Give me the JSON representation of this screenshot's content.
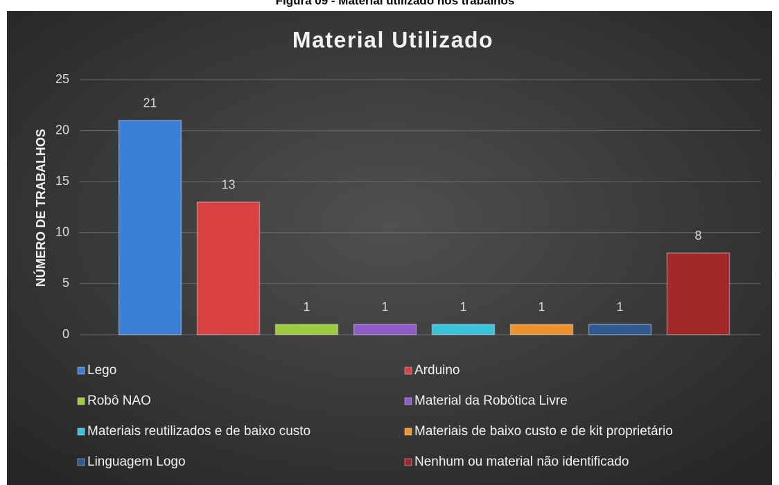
{
  "caption": "Figura 09 - Material utilizado nos trabalhos",
  "chart_data": {
    "type": "bar",
    "title": "Material Utilizado",
    "y_label": "NÚMERO DE TRABALHOS",
    "categories": [
      null
    ],
    "series": [
      {
        "name": "Lego",
        "color": "#3b80d6",
        "values": [
          21
        ]
      },
      {
        "name": "Arduino",
        "color": "#d94242",
        "values": [
          13
        ]
      },
      {
        "name": "Robô NAO",
        "color": "#9ccc3c",
        "values": [
          1
        ]
      },
      {
        "name": "Material da Robótica Livre",
        "color": "#8e5bc8",
        "values": [
          1
        ]
      },
      {
        "name": "Materiais reutilizados e de baixo custo",
        "color": "#38c3dd",
        "values": [
          1
        ]
      },
      {
        "name": "Materiais de baixo custo e de kit proprietário",
        "color": "#f0922b",
        "values": [
          1
        ]
      },
      {
        "name": "Linguagem Logo",
        "color": "#2f5b93",
        "values": [
          1
        ]
      },
      {
        "name": "Nenhum ou material não identificado",
        "color": "#a32828",
        "values": [
          8
        ]
      }
    ],
    "ylim": [
      0,
      25
    ],
    "yticks": [
      0,
      5,
      10,
      15,
      20,
      25
    ],
    "grid": true,
    "data_labels": true,
    "legend": "bottom"
  }
}
